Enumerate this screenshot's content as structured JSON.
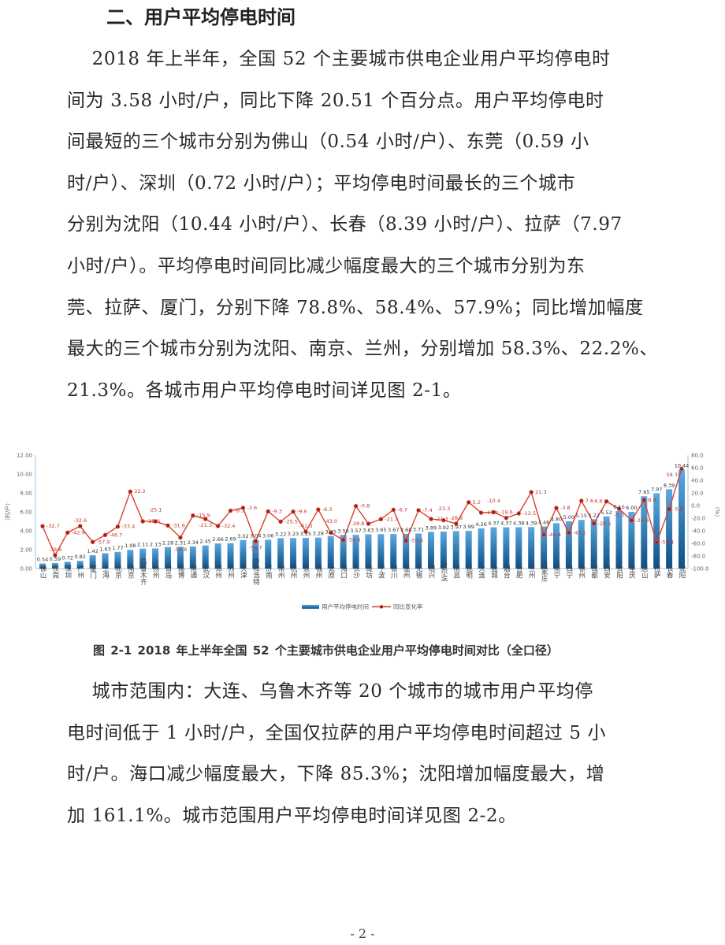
{
  "section_title": "二、用户平均停电时间",
  "paragraph1": [
    "    2018 年上半年，全国 52 个主要城市供电企业用户平均停电时",
    "间为 3.58 小时/户，同比下降 20.51 个百分点。用户平均停电时",
    "间最短的三个城市分别为佛山（0.54 小时/户）、东莞（0.59 小",
    "时/户）、深圳（0.72 小时/户）；平均停电时间最长的三个城市",
    "分别为沈阳（10.44 小时/户）、长春（8.39 小时/户）、拉萨（7.97",
    "小时/户）。平均停电时间同比减少幅度最大的三个城市分别为东",
    "莞、拉萨、厦门，分别下降 78.8%、58.4%、57.9%；同比增加幅度",
    "最大的三个城市分别为沈阳、南京、兰州，分别增加 58.3%、22.2%、",
    "21.3%。各城市用户平均停电时间详见图 2-1。"
  ],
  "figure_caption": "图 2-1    2018 年上半年全国 52 个主要城市供电企业用户平均停电时间对比（全口径）",
  "paragraph2": [
    "    城市范围内：大连、乌鲁木齐等 20 个城市的城市用户平均停",
    "电时间低于 1 小时/户，全国仅拉萨的用户平均停电时间超过 5 小",
    "时/户。海口减少幅度最大，下降 85.3%；沈阳增加幅度最大，增",
    "加 161.1%。城市范围用户平均停电时间详见图 2-2。"
  ],
  "page_number": "- 2 -",
  "chart_data": {
    "type": "bar+line",
    "categories": [
      "佛山",
      "东莞",
      "深圳",
      "广州",
      "厦门",
      "上海",
      "北京",
      "南京",
      "乌鲁木齐",
      "扬州",
      "青岛",
      "淄博",
      "南通",
      "武汉",
      "郑州",
      "苏州",
      "天津",
      "呼和浩特",
      "济南",
      "常州",
      "杭州",
      "泉州",
      "福州",
      "太原",
      "海口",
      "长沙",
      "潍坊",
      "宁波",
      "银川",
      "温州",
      "无锡",
      "绍兴",
      "哈尔滨",
      "南昌",
      "昆明",
      "大连",
      "盐城",
      "烟台",
      "合肥",
      "兰州",
      "石家庄",
      "南宁",
      "西宁",
      "徐州",
      "成都",
      "西安",
      "贵阳",
      "重庆",
      "唐山",
      "拉萨",
      "长春",
      "沈阳"
    ],
    "series": [
      {
        "name": "用户平均停电时间",
        "kind": "bar",
        "axis": "left",
        "color": "#2e7fc0",
        "values": [
          0.54,
          0.59,
          0.72,
          0.82,
          1.42,
          1.63,
          1.77,
          1.98,
          2.11,
          2.13,
          2.28,
          2.31,
          2.34,
          2.45,
          2.66,
          2.69,
          3.02,
          3.04,
          3.06,
          3.22,
          3.23,
          3.25,
          3.28,
          3.45,
          3.56,
          3.57,
          3.63,
          3.65,
          3.67,
          3.68,
          3.71,
          3.89,
          3.92,
          3.97,
          3.99,
          4.26,
          4.37,
          4.37,
          4.38,
          4.39,
          4.46,
          4.8,
          5.0,
          5.15,
          5.22,
          5.52,
          6.1,
          6.0,
          7.65,
          7.97,
          8.39,
          10.44
        ]
      },
      {
        "name": "同比变化率",
        "kind": "line",
        "axis": "right",
        "color": "#d9412f",
        "values": [
          -32.7,
          -78.8,
          -42.9,
          -32.6,
          -57.9,
          -46.7,
          -33.4,
          22.2,
          -25.0,
          -25.1,
          -31.6,
          -50.8,
          -15.9,
          -21.3,
          -32.4,
          -8.1,
          -3.6,
          -56.7,
          -9.3,
          -25.5,
          -9.6,
          -41.3,
          -6.3,
          -43.0,
          -54.6,
          -0.8,
          -28.8,
          -21.7,
          -6.7,
          -55.6,
          -7.4,
          -21.3,
          -23.3,
          -28.8,
          5.2,
          -11.4,
          -10.4,
          -19.6,
          -12.5,
          21.3,
          -46.4,
          -3.8,
          -43.1,
          7.6,
          -28.5,
          6.6,
          -5.0,
          -23.6,
          8.8,
          -58.4,
          -5.8,
          58.3
        ]
      }
    ],
    "ylabel_left": "（时/户）",
    "ylabel_right": "（%）",
    "ylim_left": [
      0,
      12
    ],
    "yticks_left": [
      "0.00",
      "2.00",
      "4.00",
      "6.00",
      "8.00",
      "10.00",
      "12.00"
    ],
    "ylim_right": [
      -100,
      80
    ],
    "yticks_right": [
      "-100.0",
      "-80.0",
      "-60.0",
      "-40.0",
      "-20.0",
      "0.0",
      "20.0",
      "40.0",
      "60.0",
      "80.0"
    ],
    "legend_position": "bottom",
    "grid": false
  }
}
